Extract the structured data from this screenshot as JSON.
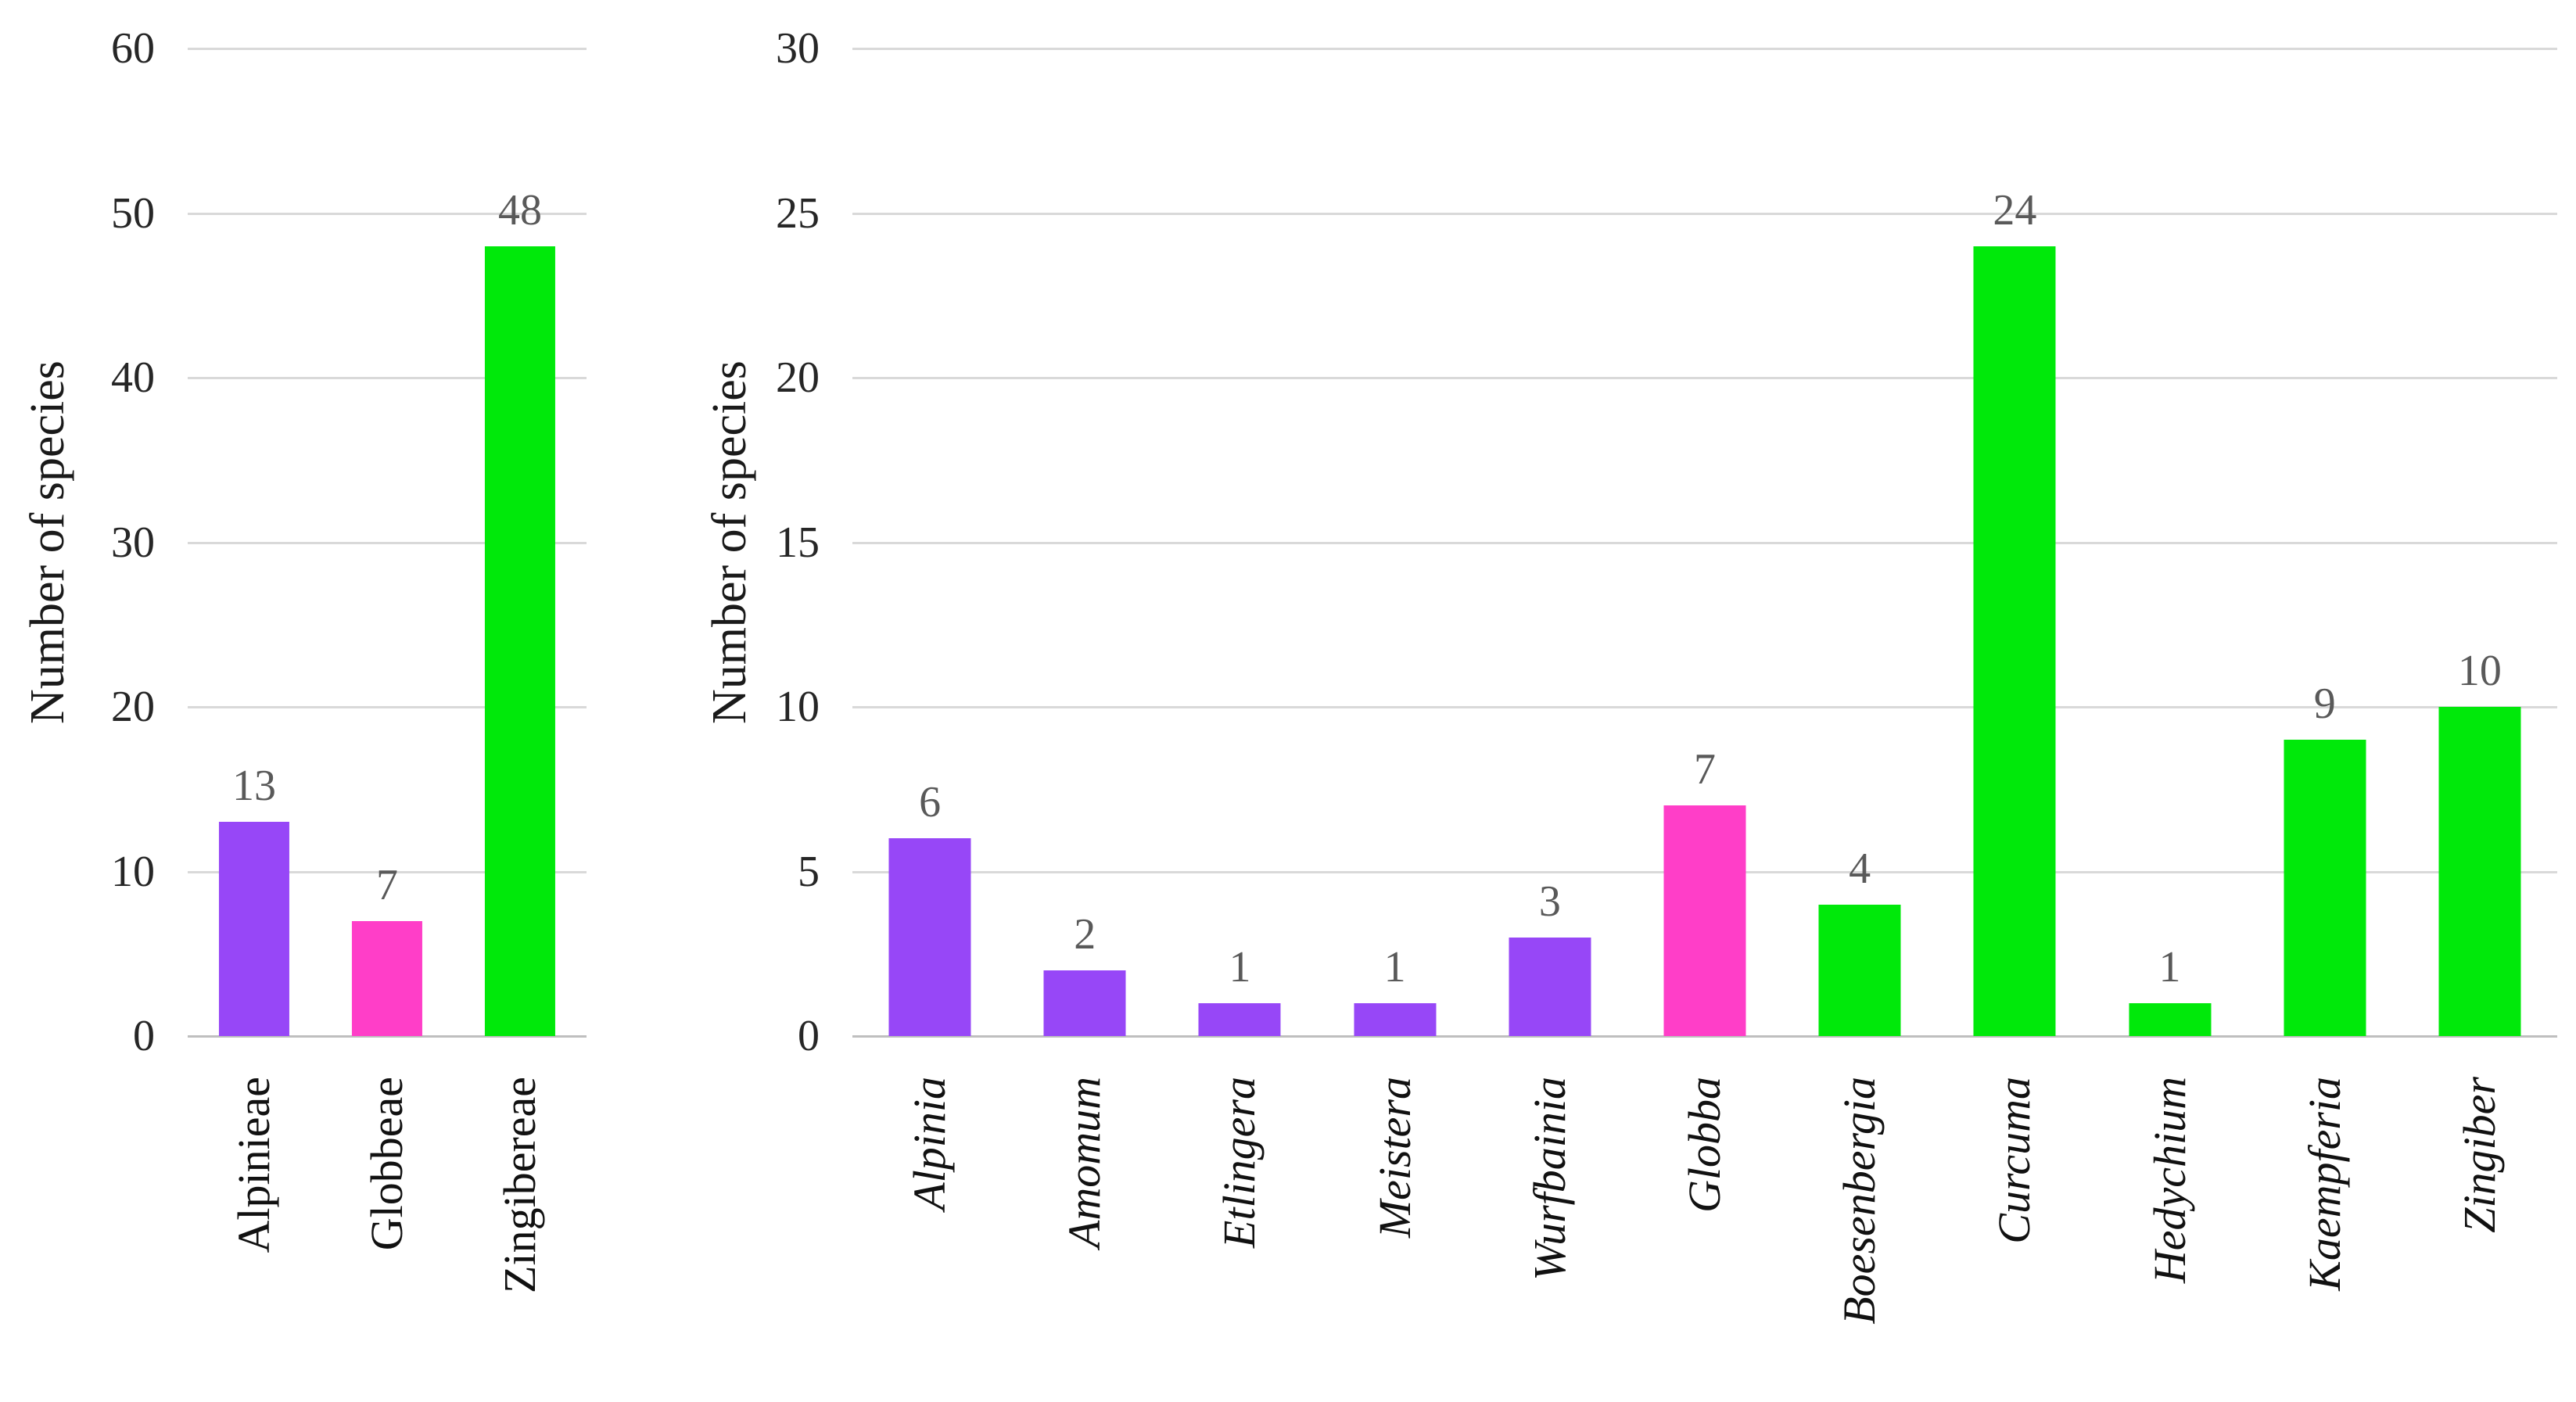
{
  "palette": {
    "purple": "#9747F7",
    "magenta": "#FF3EC8",
    "green": "#00E90A",
    "gridline": "#D9D9D9",
    "axis_line": "#BFBFBF",
    "tick_text": "#262626",
    "value_label_text": "#595959",
    "category_text": "#111111"
  },
  "chart_data": [
    {
      "type": "bar",
      "title": "",
      "ylabel": "Number of species",
      "xlabel": "",
      "ylim": [
        0,
        60
      ],
      "ytick_step": 10,
      "yticks": [
        0,
        10,
        20,
        30,
        40,
        50,
        60
      ],
      "grid": true,
      "legend": false,
      "categories": [
        "Alpinieae",
        "Globbeae",
        "Zingibereae"
      ],
      "values": [
        13,
        7,
        48
      ],
      "bar_colors": [
        "purple",
        "magenta",
        "green"
      ],
      "category_text_style": "upright-serif-rotated-90"
    },
    {
      "type": "bar",
      "title": "",
      "ylabel": "Number of species",
      "xlabel": "",
      "ylim": [
        0,
        30
      ],
      "ytick_step": 5,
      "yticks": [
        0,
        5,
        10,
        15,
        20,
        25,
        30
      ],
      "grid": true,
      "legend": false,
      "categories": [
        "Alpinia",
        "Amomum",
        "Etlingera",
        "Meistera",
        "Wurfbainia",
        "Globba",
        "Boesenbergia",
        "Curcuma",
        "Hedychium",
        "Kaempferia",
        "Zingiber"
      ],
      "values": [
        6,
        2,
        1,
        1,
        3,
        7,
        4,
        24,
        1,
        9,
        10
      ],
      "bar_colors": [
        "purple",
        "purple",
        "purple",
        "purple",
        "purple",
        "magenta",
        "green",
        "green",
        "green",
        "green",
        "green"
      ],
      "category_text_style": "italic-serif-rotated-90"
    }
  ]
}
